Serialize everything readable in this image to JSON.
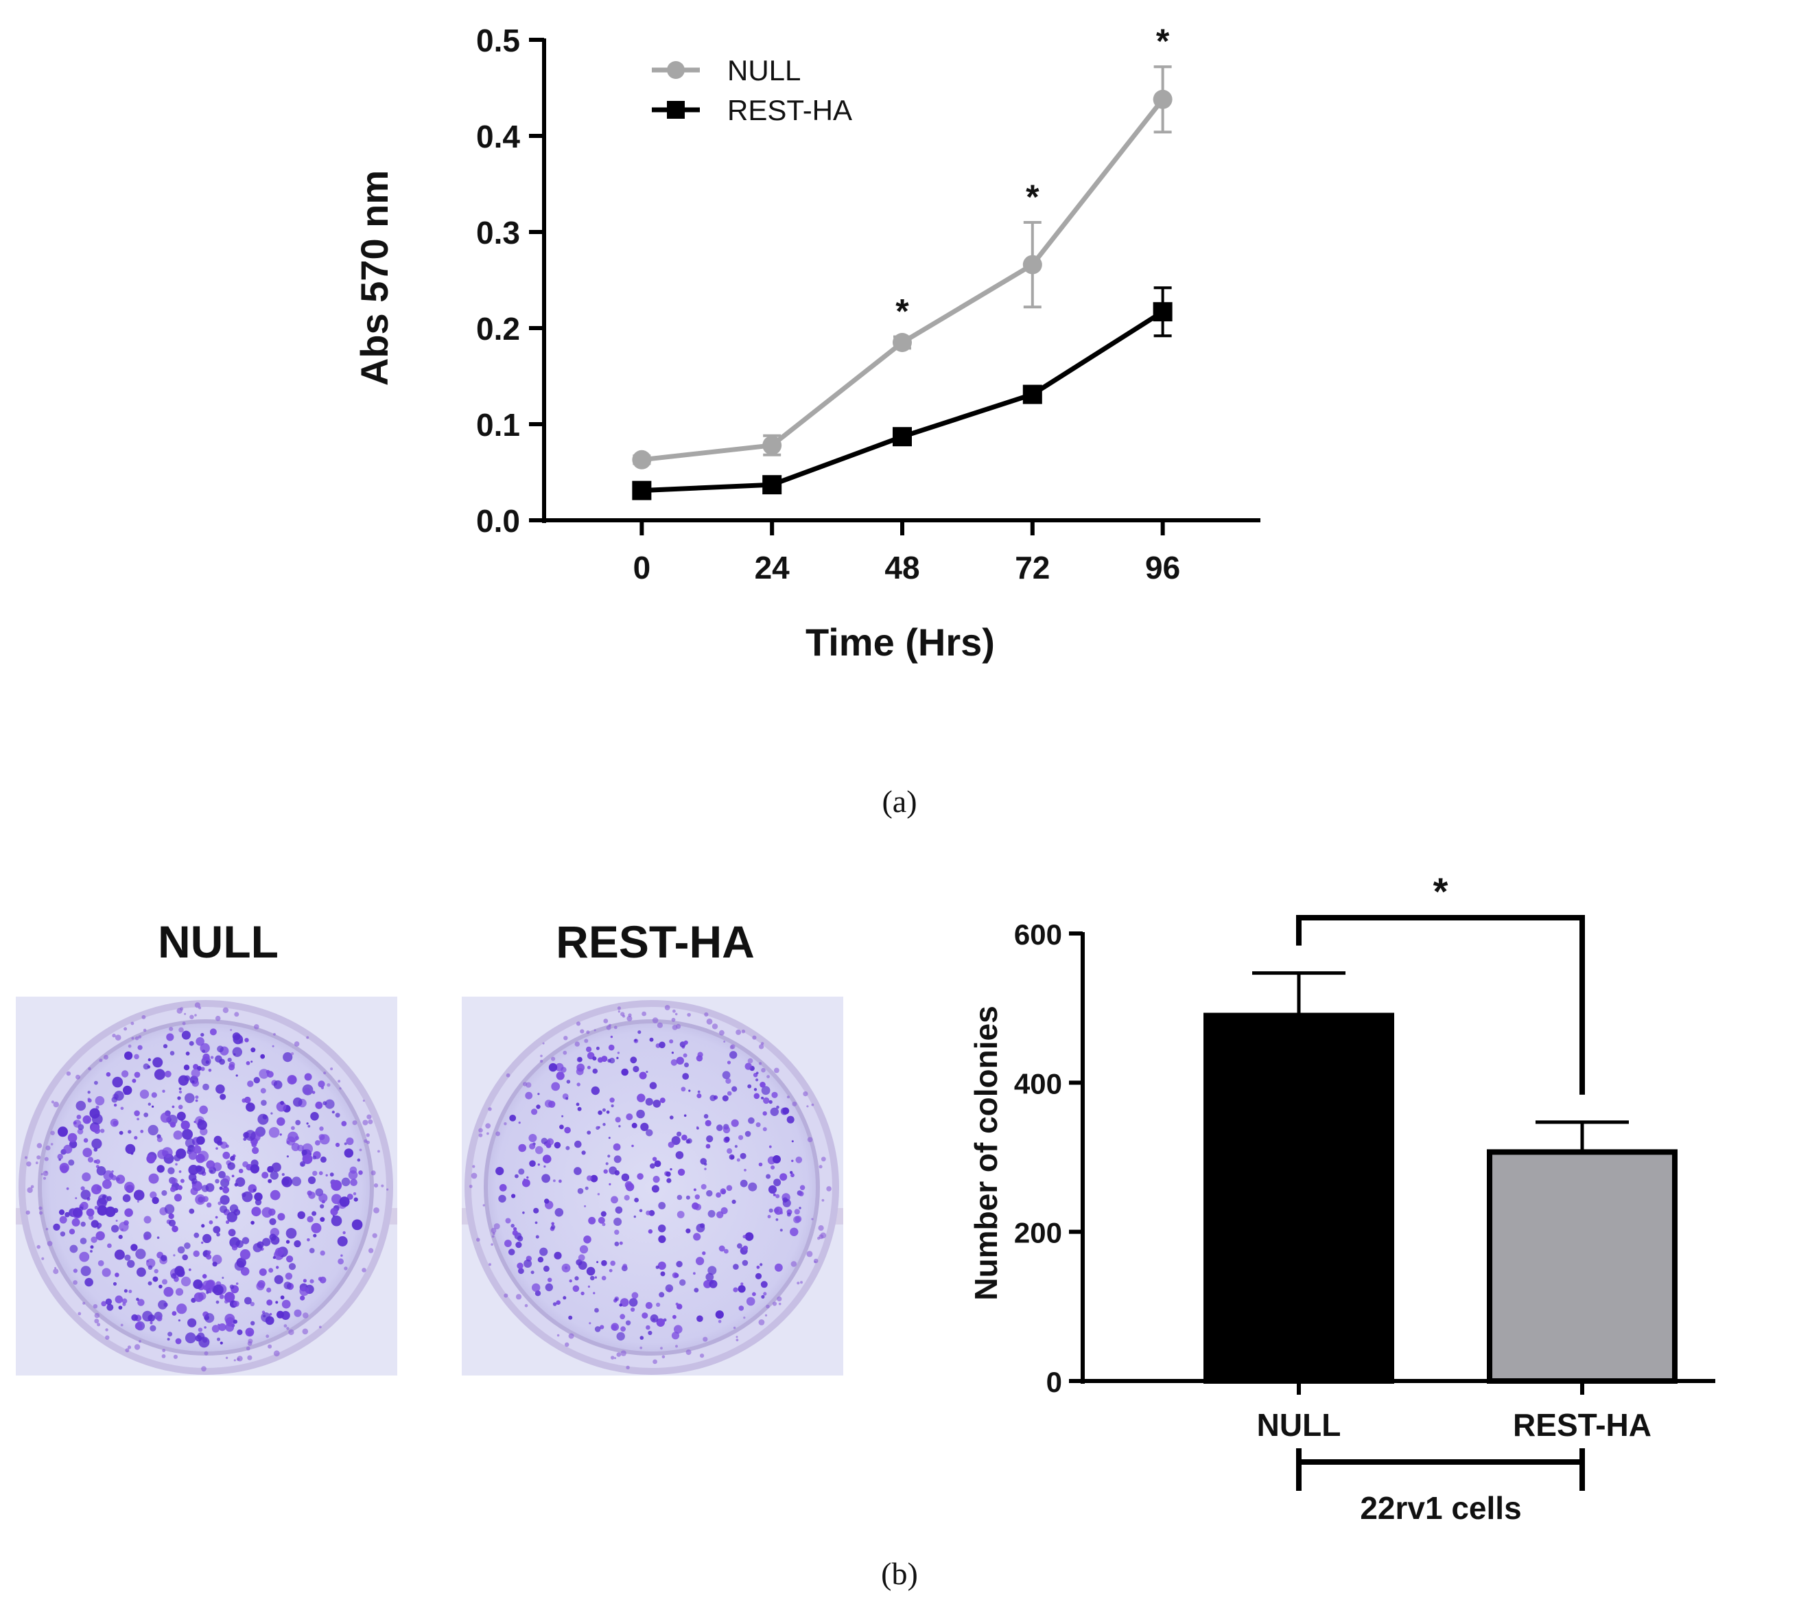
{
  "chart_data": [
    {
      "type": "line",
      "panel": "(a)",
      "xlabel": "Time (Hrs)",
      "ylabel": "Abs 570 nm",
      "x": [
        0,
        24,
        48,
        72,
        96
      ],
      "x_tick_labels": [
        "0",
        "24",
        "48",
        "72",
        "96"
      ],
      "xlim": [
        -18,
        114
      ],
      "ylim": [
        0,
        0.5
      ],
      "y_ticks": [
        0.0,
        0.1,
        0.2,
        0.3,
        0.4,
        0.5
      ],
      "y_tick_labels": [
        "0.0",
        "0.1",
        "0.2",
        "0.3",
        "0.4",
        "0.5"
      ],
      "legend_position": "top-left",
      "series": [
        {
          "name": "NULL",
          "color": "#a6a6a6",
          "marker": "circle",
          "values": [
            0.063,
            0.078,
            0.185,
            0.266,
            0.438
          ],
          "errors": [
            0.004,
            0.01,
            0.006,
            0.044,
            0.034
          ]
        },
        {
          "name": "REST-HA",
          "color": "#000000",
          "marker": "square",
          "values": [
            0.031,
            0.037,
            0.087,
            0.131,
            0.217
          ],
          "errors": [
            0.003,
            0.005,
            0.006,
            0.008,
            0.025
          ]
        }
      ],
      "significance": [
        {
          "x": 48,
          "label": "*"
        },
        {
          "x": 72,
          "label": "*"
        },
        {
          "x": 96,
          "label": "*"
        }
      ]
    },
    {
      "type": "bar",
      "panel": "(b)",
      "ylabel": "Number of colonies",
      "xlabel": "22rv1 cells",
      "categories": [
        "NULL",
        "REST-HA"
      ],
      "values": [
        490,
        307
      ],
      "errors": [
        57,
        40
      ],
      "colors": [
        "#000000",
        "#a3a3a8"
      ],
      "ylim": [
        0,
        600
      ],
      "y_ticks": [
        0,
        200,
        400,
        600
      ],
      "y_tick_labels": [
        "0",
        "200",
        "400",
        "600"
      ],
      "significance": {
        "between": [
          "NULL",
          "REST-HA"
        ],
        "label": "*"
      }
    }
  ],
  "colony_images": {
    "null_label": "NULL",
    "rest_label": "REST-HA"
  },
  "panel_labels": {
    "a": "(a)",
    "b": "(b)"
  }
}
